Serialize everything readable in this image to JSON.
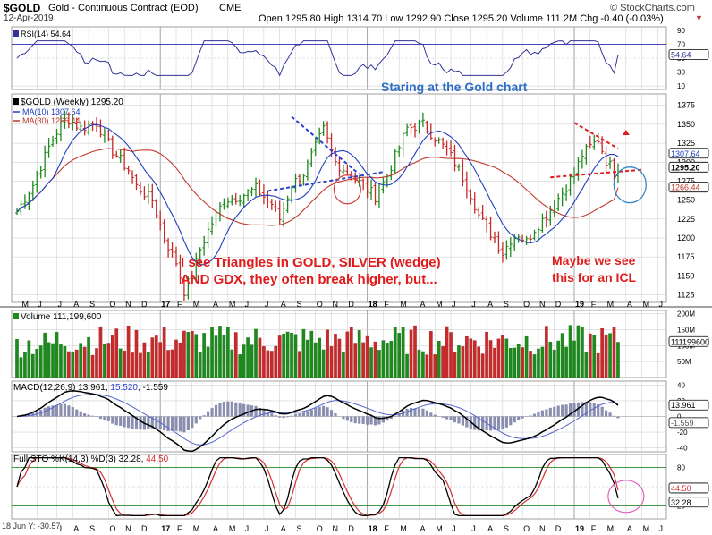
{
  "header": {
    "symbol": "$GOLD",
    "name": "Gold - Continuous Contract (EOD)",
    "exchange": "CME",
    "date": "12-Apr-2019",
    "stats_label": "Open 1295.80  High 1314.70  Low 1292.90  Close 1295.20  Volume 111.2M  Chg -0.40 (-0.03%)",
    "chg_arrow": "▼",
    "brand": "© StockCharts.com"
  },
  "annotations": {
    "title": "Staring at the Gold chart",
    "text_main_1": "I see Triangles in GOLD, SILVER (wedge)",
    "text_main_2": "AND GDX, they often break higher, but...",
    "text_right_1": "Maybe we see",
    "text_right_2": "this for an ICL"
  },
  "footer": {
    "note": "18 Jun Y: -30.57"
  },
  "colors": {
    "up": "#1e8a1e",
    "down": "#c62a2a",
    "ma10": "#1f3fbf",
    "ma30": "#c0392b",
    "grid": "#c8c8c8",
    "annotation_red": "#e01b1b",
    "annotation_blue": "#2d6fc4"
  },
  "chart_data": [
    {
      "type": "line",
      "panel": "rsi",
      "label": "RSI(14) 54.64",
      "value": 54.64,
      "y_ticks": [
        10,
        30,
        50,
        70,
        90
      ],
      "ylim": [
        5,
        95
      ]
    },
    {
      "type": "candlestick",
      "panel": "price",
      "label": "$GOLD (Weekly) 1295.20",
      "legend": [
        {
          "name": "MA(10) 1307.64",
          "color": "#1f3fbf"
        },
        {
          "name": "MA(30) 1266.44",
          "color": "#c0392b"
        }
      ],
      "y_ticks": [
        1125,
        1150,
        1175,
        1200,
        1225,
        1250,
        1275,
        1300,
        1325,
        1350,
        1375
      ],
      "ylim": [
        1115,
        1390
      ],
      "x_labels": [
        "M",
        "J",
        "J",
        "A",
        "S",
        "O",
        "N",
        "D",
        "17",
        "F",
        "M",
        "A",
        "M",
        "J",
        "J",
        "A",
        "S",
        "O",
        "N",
        "D",
        "18",
        "F",
        "M",
        "A",
        "M",
        "J",
        "J",
        "A",
        "S",
        "O",
        "N",
        "D",
        "19",
        "F",
        "M",
        "A",
        "M",
        "J",
        "J"
      ],
      "price_tags": [
        {
          "value": 1307.64,
          "label": "1307.64"
        },
        {
          "value": 1295.2,
          "label": "1295.20"
        },
        {
          "value": 1266.44,
          "label": "1266.44"
        }
      ],
      "anchors": [
        [
          0,
          1235
        ],
        [
          4,
          1270
        ],
        [
          8,
          1320
        ],
        [
          12,
          1360
        ],
        [
          16,
          1345
        ],
        [
          20,
          1352
        ],
        [
          24,
          1315
        ],
        [
          28,
          1290
        ],
        [
          30,
          1268
        ],
        [
          34,
          1250
        ],
        [
          37,
          1200
        ],
        [
          40,
          1168
        ],
        [
          42,
          1130
        ],
        [
          44,
          1150
        ],
        [
          46,
          1185
        ],
        [
          48,
          1210
        ],
        [
          52,
          1250
        ],
        [
          56,
          1255
        ],
        [
          60,
          1265
        ],
        [
          64,
          1245
        ],
        [
          66,
          1225
        ],
        [
          69,
          1270
        ],
        [
          72,
          1285
        ],
        [
          75,
          1320
        ],
        [
          77,
          1343
        ],
        [
          80,
          1300
        ],
        [
          84,
          1282
        ],
        [
          88,
          1265
        ],
        [
          90,
          1255
        ],
        [
          93,
          1282
        ],
        [
          96,
          1320
        ],
        [
          98,
          1345
        ],
        [
          102,
          1350
        ],
        [
          106,
          1327
        ],
        [
          108,
          1315
        ],
        [
          110,
          1300
        ],
        [
          112,
          1280
        ],
        [
          114,
          1258
        ],
        [
          116,
          1230
        ],
        [
          118,
          1212
        ],
        [
          120,
          1200
        ],
        [
          122,
          1180
        ],
        [
          124,
          1198
        ],
        [
          126,
          1205
        ],
        [
          128,
          1195
        ],
        [
          130,
          1212
        ],
        [
          133,
          1230
        ],
        [
          135,
          1245
        ],
        [
          137,
          1260
        ],
        [
          140,
          1285
        ],
        [
          142,
          1310
        ],
        [
          144,
          1320
        ],
        [
          146,
          1330
        ],
        [
          148,
          1302
        ],
        [
          150,
          1290
        ],
        [
          151,
          1295
        ]
      ]
    },
    {
      "type": "bar",
      "panel": "volume",
      "label": "Volume 111,199,600",
      "value": 111199600,
      "value_label": "111199600",
      "y_ticks": [
        "50M",
        "100M",
        "150M",
        "200M"
      ],
      "ylim": [
        0,
        210000000
      ]
    },
    {
      "type": "line",
      "panel": "macd",
      "label": "MACD(12,26,9) 13.961, 15.520, -1.559",
      "title_parts": [
        "MACD(12,26,9) 13.961, ",
        "15.520",
        ", -1.559"
      ],
      "values": {
        "macd": 13.961,
        "signal": 15.52,
        "histogram": -1.559
      },
      "value_labels": [
        "13.961",
        "-1.559"
      ],
      "y_ticks": [
        -40,
        -20,
        0,
        20,
        40
      ],
      "ylim": [
        -45,
        45
      ]
    },
    {
      "type": "line",
      "panel": "stochastic",
      "label": "Full STO %K(14,3) %D(3) 32.28, 44.50",
      "title_parts": [
        "Full STO %K(14,3) %D(3) 32.28, ",
        "44.50"
      ],
      "values": {
        "k": 32.28,
        "d": 44.5
      },
      "value_labels": [
        "44.50",
        "32.28"
      ],
      "y_ticks": [
        20,
        50,
        80
      ],
      "ylim": [
        0,
        100
      ]
    }
  ]
}
